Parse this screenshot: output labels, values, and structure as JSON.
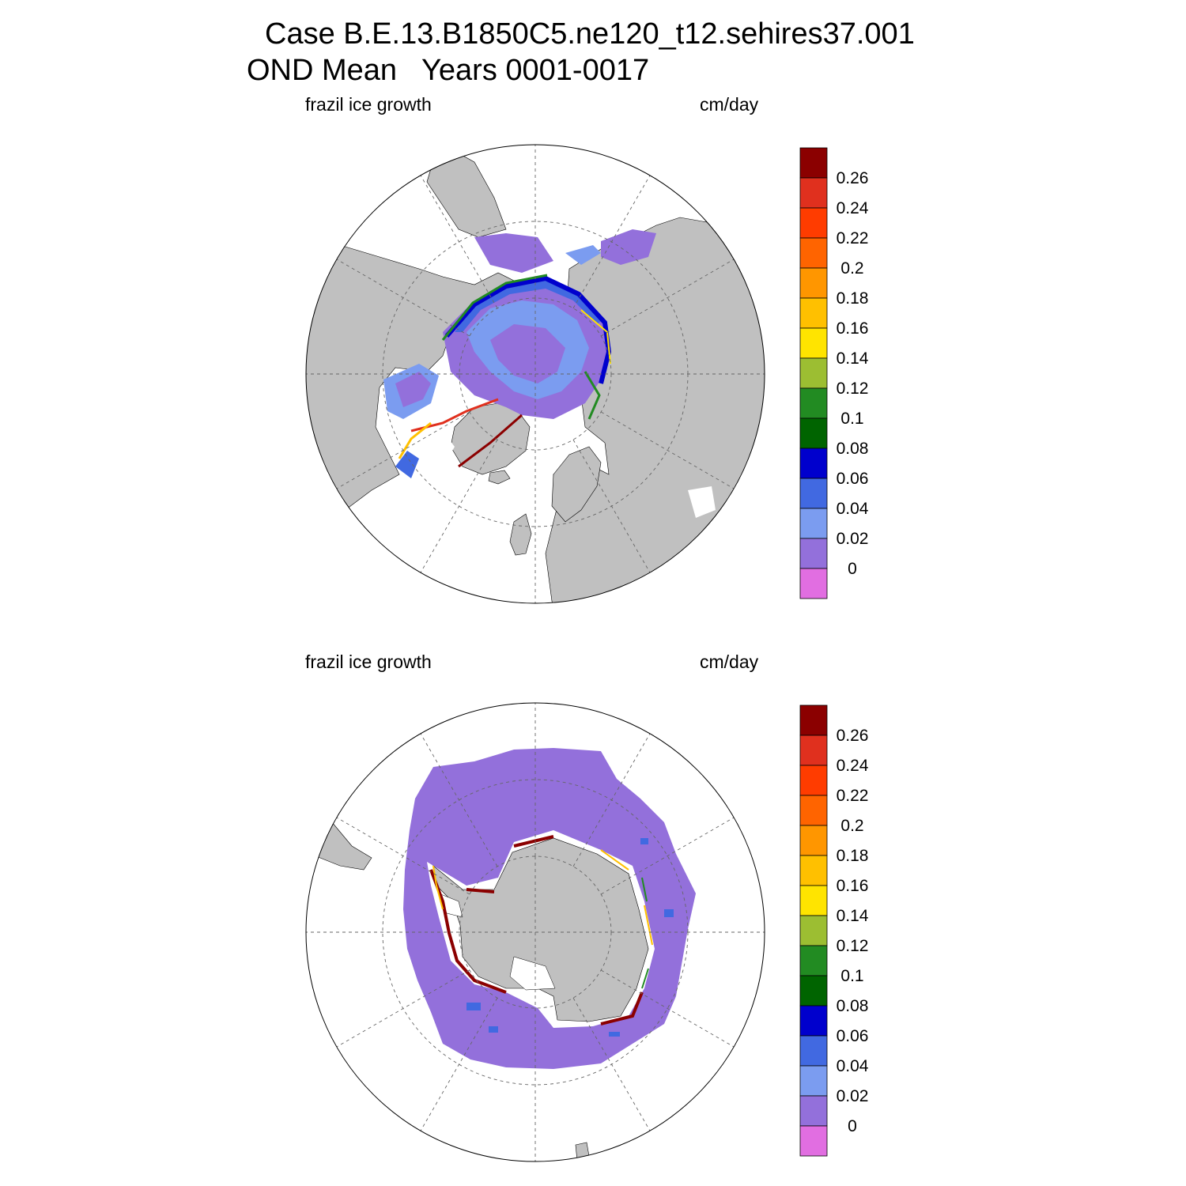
{
  "title": {
    "line1": "Case B.E.13.B1850C5.ne120_t12.sehires37.001",
    "line2": "OND Mean   Years 0001-0017"
  },
  "colorbar": {
    "labels": [
      "0.26",
      "0.24",
      "0.22",
      "0.2",
      "0.18",
      "0.16",
      "0.14",
      "0.12",
      "0.1",
      "0.08",
      "0.06",
      "0.04",
      "0.02",
      "0"
    ],
    "colors": [
      "#8b0000",
      "#e0301e",
      "#ff3c00",
      "#ff6400",
      "#ff9600",
      "#ffc000",
      "#ffe400",
      "#9cbe32",
      "#228b22",
      "#006400",
      "#0000cd",
      "#4169e1",
      "#7b9cf0",
      "#9370db",
      "#e16ee1"
    ]
  },
  "panels": [
    {
      "id": "north",
      "hemisphere": "Northern Hemisphere polar stereographic",
      "left_label": "frazil ice growth",
      "right_label": "cm/day"
    },
    {
      "id": "south",
      "hemisphere": "Southern Hemisphere polar stereographic",
      "left_label": "frazil ice growth",
      "right_label": "cm/day"
    }
  ],
  "map_colors": {
    "land": "#c0c0c0",
    "ocean_no_data": "#ffffff",
    "gridline": "#666666"
  }
}
